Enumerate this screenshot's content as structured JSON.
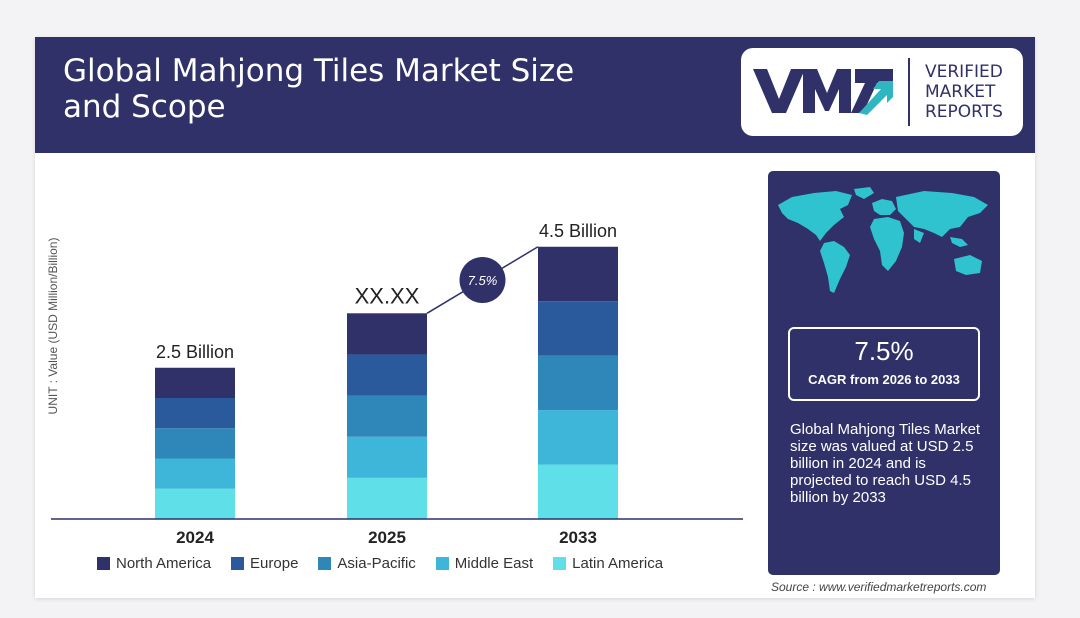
{
  "header": {
    "title": "Global Mahjong Tiles Market Size and Scope"
  },
  "logo": {
    "line1": "VERIFIED",
    "line2": "MARKET",
    "line3": "REPORTS"
  },
  "chart_data": {
    "type": "bar",
    "stacked": true,
    "categories": [
      "2024",
      "2025",
      "2033"
    ],
    "series": [
      {
        "name": "North America",
        "color": "#2f3168"
      },
      {
        "name": "Europe",
        "color": "#2a5a9c"
      },
      {
        "name": "Asia-Pacific",
        "color": "#2f86b8"
      },
      {
        "name": "Middle East",
        "color": "#3eb6da"
      },
      {
        "name": "Latin America",
        "color": "#5fe0e8"
      }
    ],
    "totals": [
      2.5,
      3.4,
      4.5
    ],
    "bar_labels": [
      "2.5 Billion",
      "XX.XX",
      "4.5 Billion"
    ],
    "ylabel": "UNIT : Value (USD Million/Billion)",
    "cagr_bubble": "7.5%"
  },
  "side": {
    "cagr_value": "7.5%",
    "cagr_label": "CAGR from 2026 to 2033",
    "summary": "Global Mahjong Tiles Market size was valued at USD 2.5 billion in 2024 and is projected to reach USD 4.5 billion by 2033"
  },
  "source": "Source : www.verifiedmarketreports.com"
}
